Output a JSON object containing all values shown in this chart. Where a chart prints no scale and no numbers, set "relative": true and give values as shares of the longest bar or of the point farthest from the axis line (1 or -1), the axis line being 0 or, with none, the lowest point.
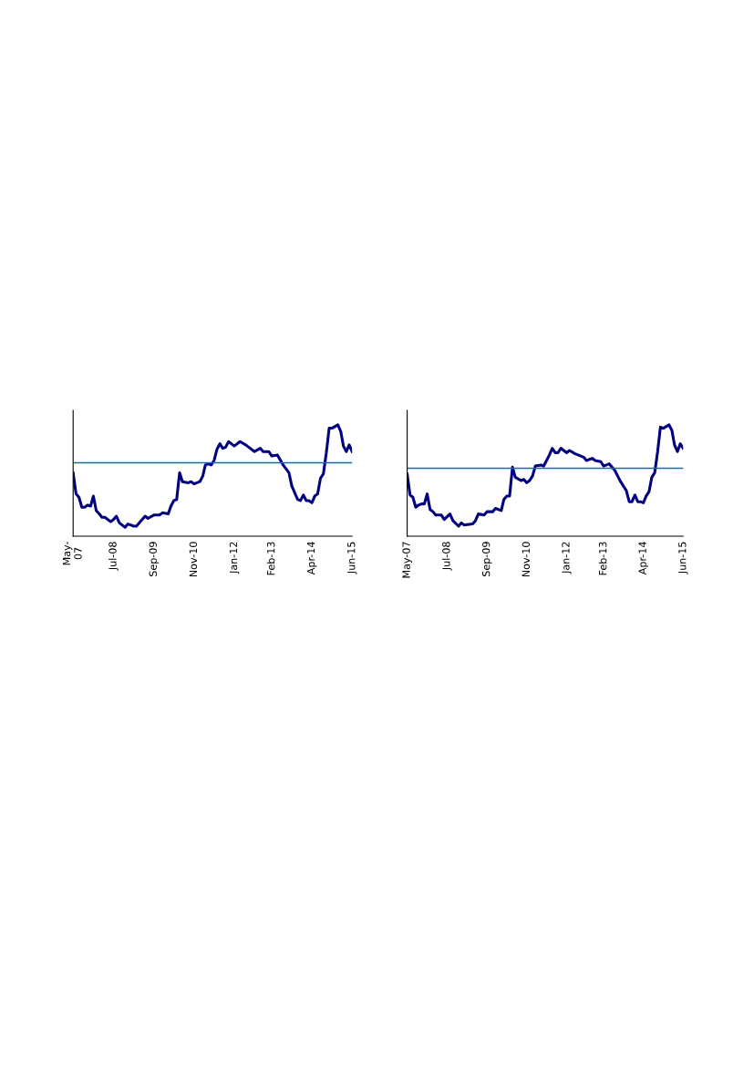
{
  "chart_data": [
    {
      "type": "line",
      "relative": true,
      "grid": false,
      "marker": "none",
      "line_style": "solid",
      "xlim": [
        "2007-05",
        "2015-06"
      ],
      "xticks": [
        {
          "value": "2007-05",
          "label": "May-\n07"
        },
        {
          "value": "2008-07",
          "label": "Jul-08"
        },
        {
          "value": "2009-09",
          "label": "Sep-09"
        },
        {
          "value": "2010-11",
          "label": "Nov-10"
        },
        {
          "value": "2012-01",
          "label": "Jan-12"
        },
        {
          "value": "2013-02",
          "label": "Feb-13"
        },
        {
          "value": "2014-04",
          "label": "Apr-14"
        },
        {
          "value": "2015-06",
          "label": "Jun-15"
        }
      ],
      "ref_lines": [
        {
          "axis": "y",
          "value": 0.66,
          "color": "#1565d8",
          "line_style": "solid"
        }
      ],
      "series": [
        {
          "color": "#000080",
          "x": [
            "2007-05",
            "2007-06",
            "2007-07",
            "2007-08",
            "2007-09",
            "2007-10",
            "2007-11",
            "2007-12",
            "2008-01",
            "2008-02",
            "2008-03",
            "2008-04",
            "2008-06",
            "2008-07",
            "2008-08",
            "2008-09",
            "2008-11",
            "2008-12",
            "2009-02",
            "2009-03",
            "2009-04",
            "2009-06",
            "2009-07",
            "2009-09",
            "2009-11",
            "2009-12",
            "2010-02",
            "2010-03",
            "2010-04",
            "2010-05",
            "2010-06",
            "2010-07",
            "2010-09",
            "2010-10",
            "2010-11",
            "2011-01",
            "2011-02",
            "2011-03",
            "2011-04",
            "2011-05",
            "2011-06",
            "2011-07",
            "2011-08",
            "2011-09",
            "2011-10",
            "2011-11",
            "2012-01",
            "2012-03",
            "2012-05",
            "2012-06",
            "2012-08",
            "2012-10",
            "2012-11",
            "2013-01",
            "2013-02",
            "2013-04",
            "2013-06",
            "2013-08",
            "2013-09",
            "2013-11",
            "2013-12",
            "2014-01",
            "2014-02",
            "2014-03",
            "2014-04",
            "2014-05",
            "2014-06",
            "2014-07",
            "2014-08",
            "2014-09",
            "2014-10",
            "2014-11",
            "2015-01",
            "2015-02",
            "2015-03",
            "2015-04",
            "2015-05",
            "2015-06"
          ],
          "values": [
            0.57,
            0.38,
            0.35,
            0.26,
            0.26,
            0.28,
            0.27,
            0.36,
            0.23,
            0.2,
            0.17,
            0.17,
            0.13,
            0.15,
            0.18,
            0.12,
            0.08,
            0.11,
            0.09,
            0.09,
            0.12,
            0.18,
            0.16,
            0.19,
            0.19,
            0.21,
            0.2,
            0.27,
            0.32,
            0.33,
            0.57,
            0.49,
            0.48,
            0.49,
            0.47,
            0.49,
            0.54,
            0.64,
            0.65,
            0.64,
            0.68,
            0.78,
            0.83,
            0.79,
            0.8,
            0.85,
            0.81,
            0.85,
            0.82,
            0.8,
            0.76,
            0.79,
            0.76,
            0.76,
            0.72,
            0.73,
            0.64,
            0.57,
            0.45,
            0.33,
            0.32,
            0.37,
            0.32,
            0.32,
            0.3,
            0.36,
            0.38,
            0.52,
            0.56,
            0.75,
            0.97,
            0.97,
            1.0,
            0.94,
            0.81,
            0.76,
            0.82,
            0.76
          ]
        }
      ]
    },
    {
      "type": "line",
      "relative": true,
      "grid": false,
      "marker": "none",
      "line_style": "solid",
      "xlim": [
        "2007-05",
        "2015-06"
      ],
      "xticks": [
        {
          "value": "2007-05",
          "label": "May-07"
        },
        {
          "value": "2008-07",
          "label": "Jul-08"
        },
        {
          "value": "2009-09",
          "label": "Sep-09"
        },
        {
          "value": "2010-11",
          "label": "Nov-10"
        },
        {
          "value": "2012-01",
          "label": "Jan-12"
        },
        {
          "value": "2013-02",
          "label": "Feb-13"
        },
        {
          "value": "2014-04",
          "label": "Apr-14"
        },
        {
          "value": "2015-06",
          "label": "Jun-15"
        }
      ],
      "ref_lines": [
        {
          "axis": "y",
          "value": 0.61,
          "color": "#1565d8",
          "line_style": "solid"
        }
      ],
      "series": [
        {
          "color": "#000080",
          "x": [
            "2007-05",
            "2007-06",
            "2007-07",
            "2007-08",
            "2007-09",
            "2007-10",
            "2007-11",
            "2007-12",
            "2008-01",
            "2008-02",
            "2008-03",
            "2008-05",
            "2008-06",
            "2008-08",
            "2008-09",
            "2008-11",
            "2008-12",
            "2009-01",
            "2009-04",
            "2009-05",
            "2009-06",
            "2009-08",
            "2009-09",
            "2009-11",
            "2009-12",
            "2010-02",
            "2010-03",
            "2010-04",
            "2010-05",
            "2010-06",
            "2010-07",
            "2010-09",
            "2010-10",
            "2010-11",
            "2010-12",
            "2011-01",
            "2011-02",
            "2011-04",
            "2011-05",
            "2011-06",
            "2011-07",
            "2011-08",
            "2011-09",
            "2011-10",
            "2011-11",
            "2012-01",
            "2012-02",
            "2012-04",
            "2012-07",
            "2012-08",
            "2012-10",
            "2012-11",
            "2013-01",
            "2013-02",
            "2013-04",
            "2013-06",
            "2013-07",
            "2013-08",
            "2013-10",
            "2013-11",
            "2013-12",
            "2014-01",
            "2014-02",
            "2014-03",
            "2014-04",
            "2014-05",
            "2014-06",
            "2014-07",
            "2014-08",
            "2014-09",
            "2014-10",
            "2014-11",
            "2015-01",
            "2015-02",
            "2015-03",
            "2015-04",
            "2015-05",
            "2015-06"
          ],
          "values": [
            0.56,
            0.37,
            0.35,
            0.26,
            0.28,
            0.29,
            0.29,
            0.38,
            0.24,
            0.22,
            0.19,
            0.19,
            0.15,
            0.2,
            0.14,
            0.09,
            0.12,
            0.1,
            0.11,
            0.14,
            0.2,
            0.19,
            0.22,
            0.22,
            0.25,
            0.23,
            0.33,
            0.36,
            0.36,
            0.62,
            0.53,
            0.5,
            0.51,
            0.48,
            0.5,
            0.54,
            0.63,
            0.64,
            0.63,
            0.68,
            0.73,
            0.79,
            0.75,
            0.75,
            0.79,
            0.75,
            0.77,
            0.74,
            0.71,
            0.68,
            0.7,
            0.68,
            0.67,
            0.63,
            0.65,
            0.59,
            0.54,
            0.49,
            0.41,
            0.31,
            0.31,
            0.37,
            0.31,
            0.31,
            0.3,
            0.36,
            0.4,
            0.53,
            0.57,
            0.76,
            0.98,
            0.97,
            1.0,
            0.95,
            0.82,
            0.76,
            0.83,
            0.79
          ]
        }
      ]
    }
  ]
}
